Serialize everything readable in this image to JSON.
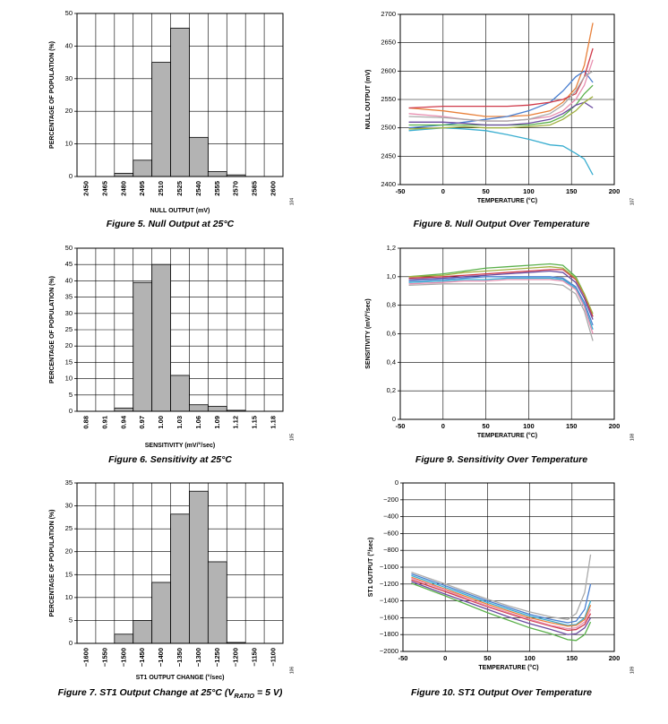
{
  "chart_data": [
    {
      "type": "bar",
      "title": "Figure 5. Null Output at 25°C",
      "code": "104",
      "x_label": "NULL OUTPUT (mV)",
      "y_label": "PERCENTAGE OF POPULATION (%)",
      "categories": [
        "2450",
        "2465",
        "2480",
        "2495",
        "2510",
        "2525",
        "2540",
        "2555",
        "2570",
        "2585",
        "2600"
      ],
      "values": [
        0,
        0,
        1,
        5,
        35,
        45.5,
        12,
        1.5,
        0.5,
        0,
        0
      ],
      "color": "#b3b3b3",
      "ylim": [
        0,
        50
      ],
      "yticks": [
        0,
        10,
        20,
        30,
        40,
        50
      ],
      "grid": true
    },
    {
      "type": "bar",
      "title": "Figure 6. Sensitivity at 25°C",
      "code": "105",
      "x_label": "SENSITIVITY (mV/°/sec)",
      "y_label": "PERCENTAGE OF POPULATION (%)",
      "categories": [
        "0.88",
        "0.91",
        "0.94",
        "0.97",
        "1.00",
        "1.03",
        "1.06",
        "1.09",
        "1.12",
        "1.15",
        "1.18"
      ],
      "values": [
        0,
        0,
        1,
        39.5,
        45,
        11,
        2,
        1.5,
        0.3,
        0,
        0
      ],
      "color": "#b3b3b3",
      "ylim": [
        0,
        50
      ],
      "yticks": [
        0,
        5,
        10,
        15,
        20,
        25,
        30,
        35,
        40,
        45,
        50
      ],
      "grid": true
    },
    {
      "type": "bar",
      "title": [
        "Figure 7. ST1 Output Change at 25°C (V",
        "RATIO",
        " = 5 V)"
      ],
      "code": "106",
      "x_label": "ST1 OUTPUT CHANGE (°/sec)",
      "y_label": "PERCENTAGE OF POPULATION (%)",
      "categories": [
        "−1600",
        "−1550",
        "−1500",
        "−1450",
        "−1400",
        "−1350",
        "−1300",
        "−1250",
        "−1200",
        "−1150",
        "−1100"
      ],
      "values": [
        0,
        0,
        2,
        5,
        13.3,
        28.2,
        33.2,
        17.8,
        0.2,
        0,
        0
      ],
      "color": "#b3b3b3",
      "ylim": [
        0,
        35
      ],
      "yticks": [
        0,
        5,
        10,
        15,
        20,
        25,
        30,
        35
      ],
      "grid": true
    },
    {
      "type": "line",
      "title": "Figure 8. Null Output Over Temperature",
      "code": "107",
      "x_label": "TEMPERATURE (°C)",
      "y_label": "NULL OUTPUT (mV)",
      "x": [
        -40,
        0,
        25,
        50,
        75,
        100,
        125,
        140,
        155,
        165,
        175
      ],
      "xlim": [
        -50,
        200
      ],
      "xticks": [
        -50,
        0,
        50,
        100,
        150,
        200
      ],
      "ylim": [
        2400,
        2700
      ],
      "yticks": [
        2400,
        2450,
        2500,
        2550,
        2600,
        2650,
        2700
      ],
      "grid": true,
      "series": [
        {
          "color": "#e8803a",
          "values": [
            2535,
            2530,
            2525,
            2520,
            2520,
            2522,
            2530,
            2545,
            2570,
            2610,
            2685
          ]
        },
        {
          "color": "#4a7fd0",
          "values": [
            2500,
            2505,
            2510,
            2515,
            2520,
            2530,
            2545,
            2565,
            2590,
            2600,
            2580
          ]
        },
        {
          "color": "#3aaed0",
          "values": [
            2495,
            2500,
            2498,
            2495,
            2488,
            2480,
            2470,
            2468,
            2455,
            2445,
            2417
          ]
        },
        {
          "color": "#d03a4a",
          "values": [
            2535,
            2538,
            2538,
            2538,
            2538,
            2540,
            2545,
            2550,
            2560,
            2590,
            2640
          ]
        },
        {
          "color": "#e88fb0",
          "values": [
            2525,
            2520,
            2515,
            2512,
            2512,
            2515,
            2520,
            2530,
            2550,
            2575,
            2620
          ]
        },
        {
          "color": "#5ab04a",
          "values": [
            2505,
            2505,
            2505,
            2505,
            2505,
            2505,
            2510,
            2520,
            2540,
            2560,
            2575
          ]
        },
        {
          "color": "#6a4aa0",
          "values": [
            2510,
            2510,
            2508,
            2505,
            2505,
            2508,
            2515,
            2525,
            2540,
            2545,
            2535
          ]
        },
        {
          "color": "#aaaaaa",
          "values": [
            2520,
            2518,
            2515,
            2512,
            2512,
            2515,
            2525,
            2540,
            2565,
            2590,
            2600
          ]
        },
        {
          "color": "#a0b040",
          "values": [
            2498,
            2500,
            2502,
            2500,
            2500,
            2502,
            2505,
            2515,
            2530,
            2545,
            2555
          ]
        }
      ]
    },
    {
      "type": "line",
      "title": "Figure 9. Sensitivity Over Temperature",
      "code": "108",
      "x_label": "TEMPERATURE (°C)",
      "y_label": "SENSITIVITY (mV/°/sec)",
      "x": [
        -40,
        0,
        25,
        50,
        75,
        100,
        125,
        140,
        155,
        165,
        175
      ],
      "xlim": [
        -50,
        200
      ],
      "xticks": [
        -50,
        0,
        50,
        100,
        150,
        200
      ],
      "ylim": [
        0,
        1.2
      ],
      "yticks": [
        0,
        {
          "value": 0.2,
          "label": "0,2"
        },
        {
          "value": 0.4,
          "label": "0,4"
        },
        {
          "value": 0.6,
          "label": "0,6"
        },
        {
          "value": 0.8,
          "label": "0,8"
        },
        {
          "value": 1.0,
          "label": "1,0"
        },
        {
          "value": 1.2,
          "label": "1,2"
        }
      ],
      "grid": true,
      "series": [
        {
          "color": "#5ab04a",
          "values": [
            1.0,
            1.02,
            1.04,
            1.06,
            1.07,
            1.08,
            1.09,
            1.08,
            1.0,
            0.88,
            0.72
          ]
        },
        {
          "color": "#6a4aa0",
          "values": [
            0.98,
            0.99,
            1.0,
            1.01,
            1.02,
            1.03,
            1.04,
            1.03,
            0.96,
            0.85,
            0.7
          ]
        },
        {
          "color": "#4a7fd0",
          "values": [
            0.97,
            0.98,
            0.99,
            1.0,
            1.0,
            1.0,
            1.0,
            0.99,
            0.93,
            0.82,
            0.66
          ]
        },
        {
          "color": "#aaaaaa",
          "values": [
            0.94,
            0.95,
            0.95,
            0.95,
            0.95,
            0.95,
            0.95,
            0.94,
            0.88,
            0.76,
            0.55
          ]
        },
        {
          "color": "#d03a4a",
          "values": [
            0.99,
            1.0,
            1.01,
            1.02,
            1.03,
            1.04,
            1.05,
            1.05,
            0.98,
            0.87,
            0.72
          ]
        },
        {
          "color": "#3aaed0",
          "values": [
            0.96,
            0.97,
            0.98,
            0.98,
            0.99,
            0.99,
            0.99,
            0.98,
            0.92,
            0.8,
            0.63
          ]
        },
        {
          "color": "#a0b040",
          "values": [
            1.0,
            1.01,
            1.03,
            1.04,
            1.05,
            1.06,
            1.07,
            1.06,
            0.99,
            0.88,
            0.74
          ]
        },
        {
          "color": "#e88fb0",
          "values": [
            0.95,
            0.96,
            0.97,
            0.97,
            0.98,
            0.98,
            0.98,
            0.97,
            0.91,
            0.79,
            0.6
          ]
        }
      ]
    },
    {
      "type": "line",
      "title": "Figure 10. ST1 Output Over Temperature",
      "code": "109",
      "x_label": "TEMPERATURE (°C)",
      "y_label": "ST1 OUTPUT (°/sec)",
      "x": [
        -40,
        0,
        25,
        50,
        75,
        100,
        125,
        145,
        155,
        165,
        172
      ],
      "xlim": [
        -50,
        200
      ],
      "xticks": [
        -50,
        0,
        50,
        100,
        150,
        200
      ],
      "ylim": [
        -2000,
        0
      ],
      "yticks": [
        {
          "value": -2000,
          "label": "−2000"
        },
        {
          "value": -1800,
          "label": "−1800"
        },
        {
          "value": -1600,
          "label": "−1600"
        },
        {
          "value": -1400,
          "label": "−1400"
        },
        {
          "value": -1200,
          "label": "−1200"
        },
        {
          "value": -1000,
          "label": "−1000"
        },
        {
          "value": -800,
          "label": "−800"
        },
        {
          "value": -600,
          "label": "−600"
        },
        {
          "value": -400,
          "label": "−400"
        },
        {
          "value": -200,
          "label": "−200"
        },
        0
      ],
      "grid": true,
      "series": [
        {
          "color": "#aaaaaa",
          "values": [
            -1060,
            -1200,
            -1290,
            -1380,
            -1460,
            -1530,
            -1590,
            -1620,
            -1550,
            -1300,
            -850
          ]
        },
        {
          "color": "#4a7fd0",
          "values": [
            -1080,
            -1220,
            -1310,
            -1400,
            -1480,
            -1560,
            -1620,
            -1660,
            -1640,
            -1500,
            -1200
          ]
        },
        {
          "color": "#3aaed0",
          "values": [
            -1100,
            -1240,
            -1330,
            -1420,
            -1500,
            -1580,
            -1640,
            -1690,
            -1680,
            -1600,
            -1400
          ]
        },
        {
          "color": "#d03a4a",
          "values": [
            -1150,
            -1290,
            -1380,
            -1470,
            -1550,
            -1630,
            -1700,
            -1750,
            -1740,
            -1680,
            -1550
          ]
        },
        {
          "color": "#6a4aa0",
          "values": [
            -1170,
            -1320,
            -1410,
            -1500,
            -1590,
            -1670,
            -1740,
            -1800,
            -1790,
            -1720,
            -1600
          ]
        },
        {
          "color": "#5ab04a",
          "values": [
            -1190,
            -1340,
            -1440,
            -1540,
            -1630,
            -1720,
            -1790,
            -1860,
            -1870,
            -1800,
            -1650
          ]
        },
        {
          "color": "#e8803a",
          "values": [
            -1120,
            -1260,
            -1350,
            -1440,
            -1520,
            -1600,
            -1660,
            -1700,
            -1690,
            -1620,
            -1450
          ]
        },
        {
          "color": "#e88fb0",
          "values": [
            -1130,
            -1270,
            -1370,
            -1460,
            -1540,
            -1620,
            -1690,
            -1730,
            -1720,
            -1650,
            -1500
          ]
        }
      ]
    }
  ]
}
